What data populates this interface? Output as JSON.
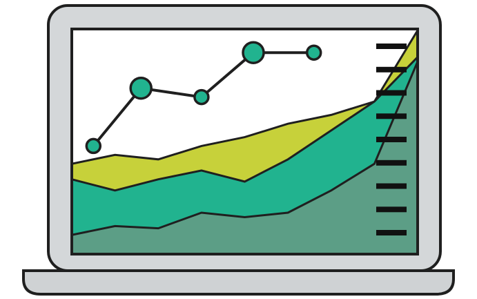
{
  "palette": {
    "outline": "#1f1f1f",
    "bezel": "#d4d7d9",
    "screen": "#ffffff",
    "base": "#cfd2d4",
    "area_lime": "#c7d13a",
    "area_teal": "#21b38f",
    "area_dark": "#5c9e86",
    "line": "#1f1f1f",
    "marker": "#21b38f",
    "tick": "#111111"
  },
  "icons": [
    "laptop-icon",
    "area-chart-icon",
    "line-chart-icon"
  ],
  "chart_data": {
    "type": "area",
    "title": "",
    "xlabel": "",
    "ylabel": "",
    "x": [
      0,
      1,
      2,
      3,
      4,
      5,
      6,
      7,
      8
    ],
    "ylim": [
      0,
      100
    ],
    "series": [
      {
        "values": [
          8,
          12,
          11,
          18,
          16,
          18,
          28,
          40,
          86
        ]
      },
      {
        "values": [
          33,
          28,
          33,
          37,
          32,
          42,
          55,
          68,
          88
        ]
      },
      {
        "values": [
          40,
          44,
          42,
          48,
          52,
          58,
          62,
          68,
          100
        ]
      }
    ],
    "line_series": {
      "x": [
        0.5,
        1.6,
        3.0,
        4.2,
        5.6
      ],
      "values": [
        48,
        74,
        70,
        90,
        90
      ],
      "sizes": [
        1,
        1.5,
        1,
        1.5,
        1
      ]
    },
    "axis_ticks": 9
  }
}
